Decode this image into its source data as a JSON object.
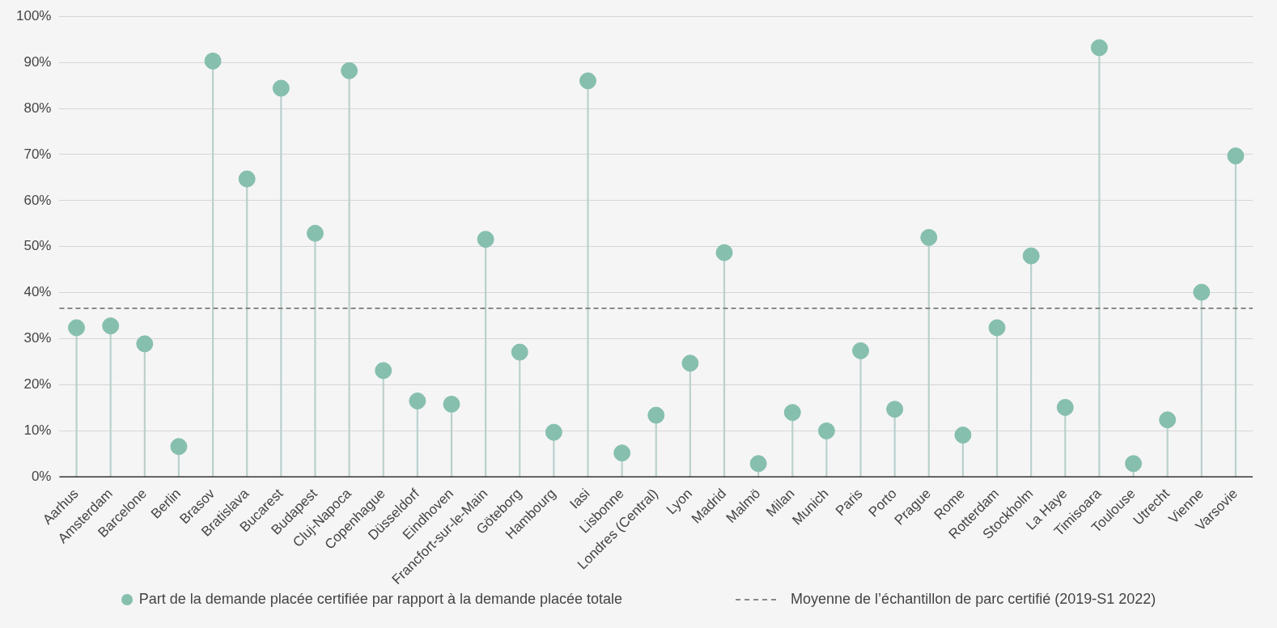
{
  "chart_data": {
    "type": "lollipop",
    "categories": [
      "Aarhus",
      "Amsterdam",
      "Barcelone",
      "Berlin",
      "Brasov",
      "Bratislava",
      "Bucarest",
      "Budapest",
      "Cluj-Napoca",
      "Copenhague",
      "Düsseldorf",
      "Eindhoven",
      "Francfort-sur-le-Main",
      "Göteborg",
      "Hambourg",
      "Iasi",
      "Lisbonne",
      "Londres (Central)",
      "Lyon",
      "Madrid",
      "Malmö",
      "Milan",
      "Munich",
      "Paris",
      "Porto",
      "Prague",
      "Rome",
      "Rotterdam",
      "Stockholm",
      "La Haye",
      "Timisoara",
      "Toulouse",
      "Utrecht",
      "Vienne",
      "Varsovie"
    ],
    "series": [
      {
        "name": "Part de la demande placée certifiée par rapport à la demande placée totale",
        "color": "#86bfae",
        "values": [
          32.4,
          32.8,
          28.9,
          6.6,
          90.3,
          64.7,
          84.4,
          52.9,
          88.2,
          23.1,
          16.5,
          15.8,
          51.6,
          27.1,
          9.7,
          86.0,
          5.2,
          13.4,
          24.7,
          48.7,
          2.9,
          14.0,
          10.0,
          27.4,
          14.7,
          52.0,
          9.1,
          32.4,
          48.0,
          15.1,
          93.2,
          2.9,
          12.4,
          40.1,
          69.7
        ]
      }
    ],
    "ylim": [
      0,
      100
    ],
    "yticks": [
      {
        "value": 0,
        "label": "0%"
      },
      {
        "value": 10,
        "label": "10%"
      },
      {
        "value": 20,
        "label": "20%"
      },
      {
        "value": 30,
        "label": "30%"
      },
      {
        "value": 40,
        "label": "40%"
      },
      {
        "value": 50,
        "label": "50%"
      },
      {
        "value": 60,
        "label": "60%"
      },
      {
        "value": 70,
        "label": "70%"
      },
      {
        "value": 80,
        "label": "80%"
      },
      {
        "value": 90,
        "label": "90%"
      },
      {
        "value": 100,
        "label": "100%"
      }
    ],
    "ref_lines": [
      {
        "axis": "y",
        "value": 36.6,
        "label": "Moyenne de l’échantillon de parc certifié (2019-S1 2022)",
        "color": "#888888",
        "line_style": "dashed"
      }
    ],
    "grid": "y",
    "legend": "bottom",
    "marker": "circle"
  }
}
